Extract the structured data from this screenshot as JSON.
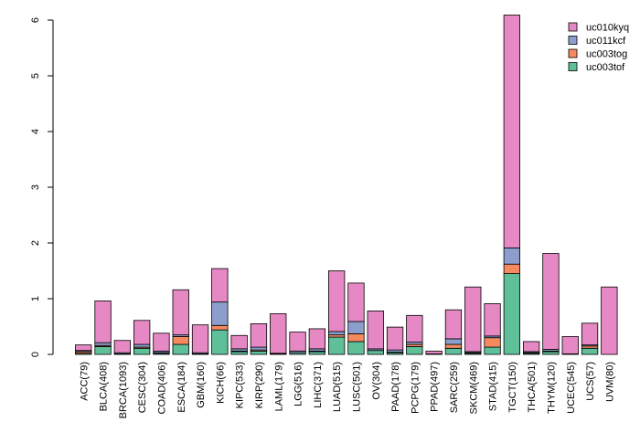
{
  "chart_data": {
    "type": "bar",
    "stacked": true,
    "title": "",
    "xlabel": "",
    "ylabel": "",
    "ylim": [
      0,
      6
    ],
    "yticks": [
      0,
      1,
      2,
      3,
      4,
      5,
      6
    ],
    "legend_position": "top-right",
    "categories": [
      "ACC(79)",
      "BLCA(408)",
      "BRCA(1093)",
      "CESC(304)",
      "COAD(406)",
      "ESCA(184)",
      "GBM(160)",
      "KICH(66)",
      "KIPC(533)",
      "KIRP(290)",
      "LAML(179)",
      "LGG(516)",
      "LIHC(371)",
      "LUAD(515)",
      "LUSC(501)",
      "OV(304)",
      "PAAD(178)",
      "PCPG(179)",
      "PPAD(497)",
      "SARC(259)",
      "SKCM(469)",
      "STAD(415)",
      "TGCT(150)",
      "THCA(501)",
      "THYM(120)",
      "UCEC(545)",
      "UCS(57)",
      "UVM(80)"
    ],
    "series": [
      {
        "name": "uc003tof",
        "color": "#5fbf99",
        "values": [
          0.02,
          0.14,
          0.01,
          0.11,
          0.02,
          0.18,
          0.01,
          0.44,
          0.05,
          0.06,
          0.01,
          0.03,
          0.05,
          0.31,
          0.23,
          0.07,
          0.03,
          0.14,
          0.0,
          0.11,
          0.02,
          0.13,
          1.45,
          0.02,
          0.05,
          0.0,
          0.11,
          0.0
        ]
      },
      {
        "name": "uc003tog",
        "color": "#f58a5e",
        "values": [
          0.03,
          0.02,
          0.0,
          0.02,
          0.01,
          0.14,
          0.0,
          0.08,
          0.01,
          0.02,
          0.0,
          0.0,
          0.01,
          0.04,
          0.14,
          0.0,
          0.01,
          0.04,
          0.0,
          0.07,
          0.01,
          0.17,
          0.17,
          0.01,
          0.01,
          0.0,
          0.04,
          0.0
        ]
      },
      {
        "name": "uc011kcf",
        "color": "#8c9ecb",
        "values": [
          0.02,
          0.05,
          0.02,
          0.05,
          0.03,
          0.03,
          0.02,
          0.42,
          0.04,
          0.05,
          0.01,
          0.03,
          0.04,
          0.06,
          0.22,
          0.03,
          0.04,
          0.04,
          0.01,
          0.1,
          0.02,
          0.03,
          0.29,
          0.02,
          0.03,
          0.01,
          0.02,
          0.0
        ]
      },
      {
        "name": "uc010kyq",
        "color": "#e688c3",
        "values": [
          0.1,
          0.75,
          0.22,
          0.43,
          0.32,
          0.81,
          0.5,
          0.6,
          0.24,
          0.42,
          0.71,
          0.34,
          0.36,
          1.09,
          0.69,
          0.68,
          0.41,
          0.48,
          0.05,
          0.52,
          1.16,
          0.58,
          4.18,
          0.18,
          1.72,
          0.31,
          0.39,
          1.21
        ]
      }
    ],
    "legend_entries": [
      "uc010kyq",
      "uc011kcf",
      "uc003tog",
      "uc003tof"
    ]
  }
}
